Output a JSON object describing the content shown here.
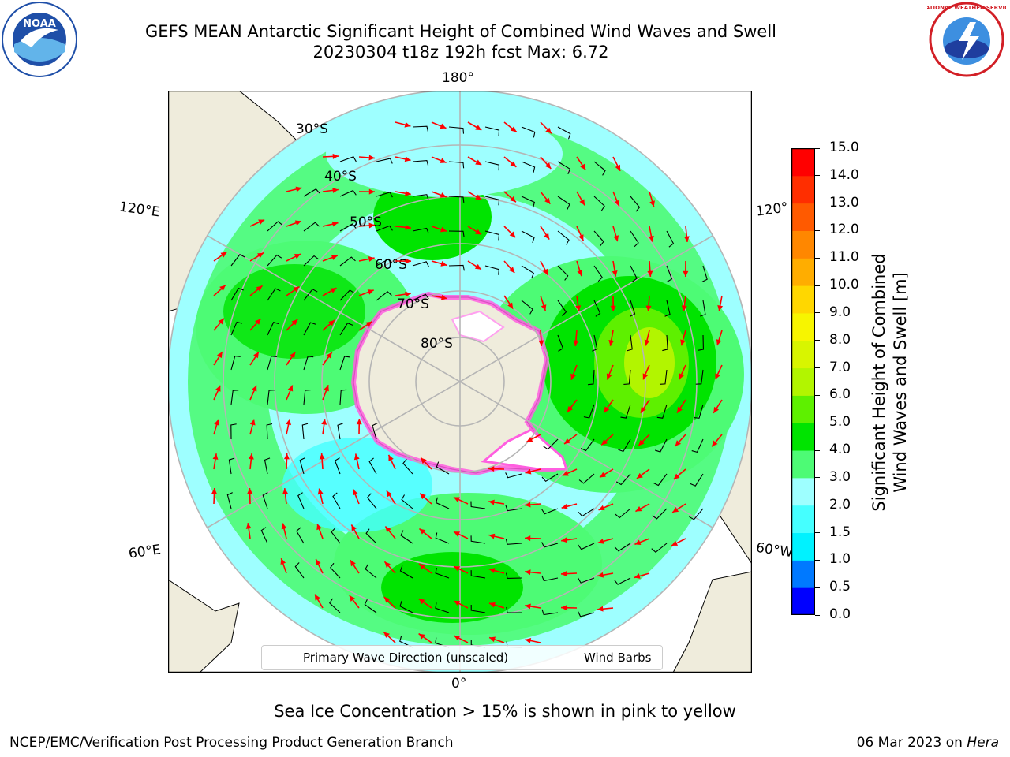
{
  "header": {
    "title_line1": "GEFS MEAN Antarctic Significant Height of Combined Wind Waves and Swell",
    "title_line2": "20230304 t18z 192h fcst   Max: 6.72"
  },
  "logos": {
    "left": {
      "name": "NOAA",
      "ring_text": "NATIONAL OCEANIC AND ATMOSPHERIC ADMINISTRATION · U.S. DEPARTMENT OF COMMERCE",
      "color": "#1f4fa8"
    },
    "right": {
      "name": "NATIONAL WEATHER SERVICE",
      "color": "#d21f26"
    }
  },
  "map": {
    "projection": "south-polar-stereographic",
    "longitude_labels": {
      "top": "180°",
      "bottom": "0°",
      "left_upper": "120°E",
      "left_lower": "60°E",
      "right_upper": "120°",
      "right_lower": "60°W"
    },
    "latitude_labels": [
      "30°S",
      "40°S",
      "50°S",
      "60°S",
      "70°S",
      "80°S"
    ],
    "colors": {
      "land": "#efecdc",
      "ocean_low": "#9effff",
      "ocean_mid": "#4dfb75",
      "ocean_high": "#00e400",
      "sea_ice": "#ff5ee0",
      "grid": "#b5b5b5"
    }
  },
  "colorbar": {
    "ticks": [
      "0.0",
      "0.5",
      "1.0",
      "1.5",
      "2.0",
      "3.0",
      "4.0",
      "5.0",
      "6.0",
      "7.0",
      "8.0",
      "9.0",
      "10.0",
      "11.0",
      "12.0",
      "13.0",
      "14.0",
      "15.0"
    ],
    "colors": [
      "#0000ff",
      "#0079ff",
      "#00f2ff",
      "#45ffff",
      "#9effff",
      "#4dfb75",
      "#00e400",
      "#5ef000",
      "#b2f500",
      "#d8f500",
      "#f7f500",
      "#ffd700",
      "#ffad00",
      "#ff8700",
      "#ff5a00",
      "#ff2e00",
      "#ff0000"
    ],
    "label_line1": "Significant Height of Combined",
    "label_line2": "Wind Waves and Swell [m]"
  },
  "legend": {
    "items": [
      {
        "label": "Primary Wave Direction (unscaled)",
        "color": "#ff0000"
      },
      {
        "label": "Wind Barbs",
        "color": "#000000"
      }
    ]
  },
  "footer": {
    "note": "Sea Ice Concentration > 15% is shown in pink to yellow",
    "credit_left": "NCEP/EMC/Verification Post Processing Product Generation Branch",
    "credit_date": "06 Mar 2023 on ",
    "credit_machine": "Hera"
  }
}
